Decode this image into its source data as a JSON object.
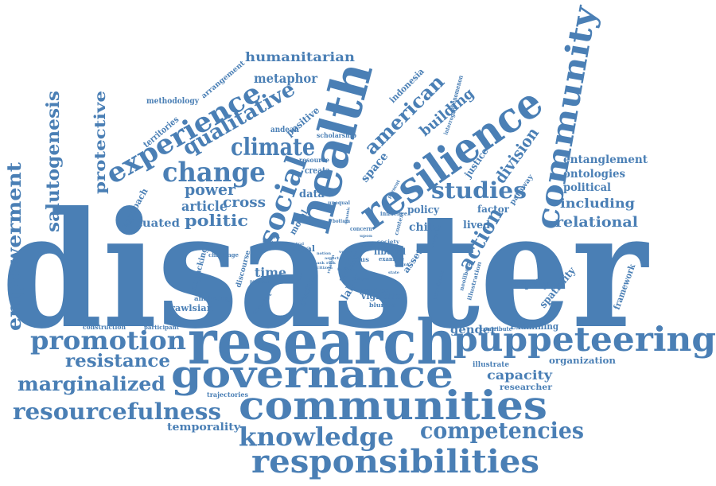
{
  "colors": {
    "word": "#4a7fb5",
    "background": "#ffffff"
  },
  "words": [
    "disaster",
    "research",
    "governance",
    "communities",
    "responsibilities",
    "puppeteering",
    "resilience",
    "health",
    "community",
    "promotion",
    "resourcefulness",
    "knowledge",
    "competencies",
    "marginalized",
    "resistance",
    "experience",
    "change",
    "climate",
    "qualitative",
    "social",
    "studies",
    "american",
    "empowerment",
    "salutogenesis",
    "politic",
    "humanitarian",
    "action",
    "metaphor",
    "protective",
    "power",
    "cross",
    "building",
    "division",
    "entanglement",
    "ontologies",
    "political",
    "including",
    "relational",
    "situated",
    "article",
    "data",
    "policy",
    "factor",
    "lived",
    "chile",
    "time",
    "labor",
    "author",
    "equity",
    "spatiality",
    "framework",
    "capacity",
    "gender",
    "examining",
    "organization",
    "researcher",
    "temporality",
    "trajectories",
    "construction",
    "participant",
    "rawlsian",
    "analyzing",
    "unpacking",
    "challenge",
    "approach",
    "territories",
    "methodology",
    "arrangement",
    "andean",
    "positive",
    "scholarship",
    "resource",
    "creata",
    "space",
    "justice",
    "pathway",
    "interrogate",
    "phenomenon",
    "indonesia",
    "moral",
    "discourse",
    "concept",
    "focus",
    "nepal",
    "liberal",
    "asset",
    "vignette",
    "practice",
    "attention",
    "blurred",
    "illustrate",
    "contribute",
    "neoliberal",
    "illustration",
    "provision",
    "example",
    "society",
    "context",
    "influence",
    "concern",
    "unequal",
    "present",
    "propose",
    "private",
    "bottom",
    "central",
    "notion",
    "aspect",
    "analytical",
    "agent",
    "upon",
    "relation",
    "indicate",
    "ask",
    "risk",
    "citizen",
    "dynamic",
    "imagine",
    "field",
    "state",
    "role",
    "first",
    "voice",
    "agency"
  ]
}
